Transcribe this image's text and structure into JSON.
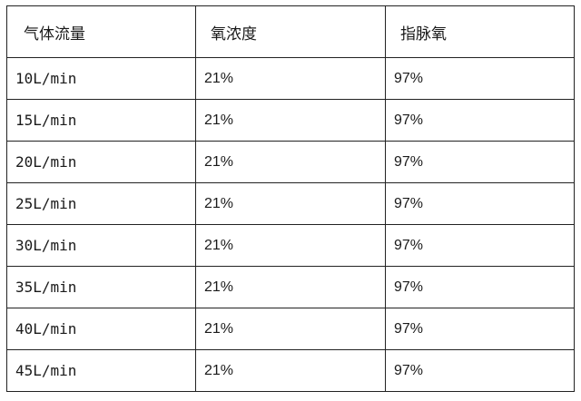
{
  "table": {
    "headers": [
      "气体流量",
      "氧浓度",
      "指脉氧"
    ],
    "rows": [
      [
        "10L/min",
        "21%",
        "97%"
      ],
      [
        "15L/min",
        "21%",
        "97%"
      ],
      [
        "20L/min",
        "21%",
        "97%"
      ],
      [
        "25L/min",
        "21%",
        "97%"
      ],
      [
        "30L/min",
        "21%",
        "97%"
      ],
      [
        "35L/min",
        "21%",
        "97%"
      ],
      [
        "40L/min",
        "21%",
        "97%"
      ],
      [
        "45L/min",
        "21%",
        "97%"
      ]
    ]
  }
}
